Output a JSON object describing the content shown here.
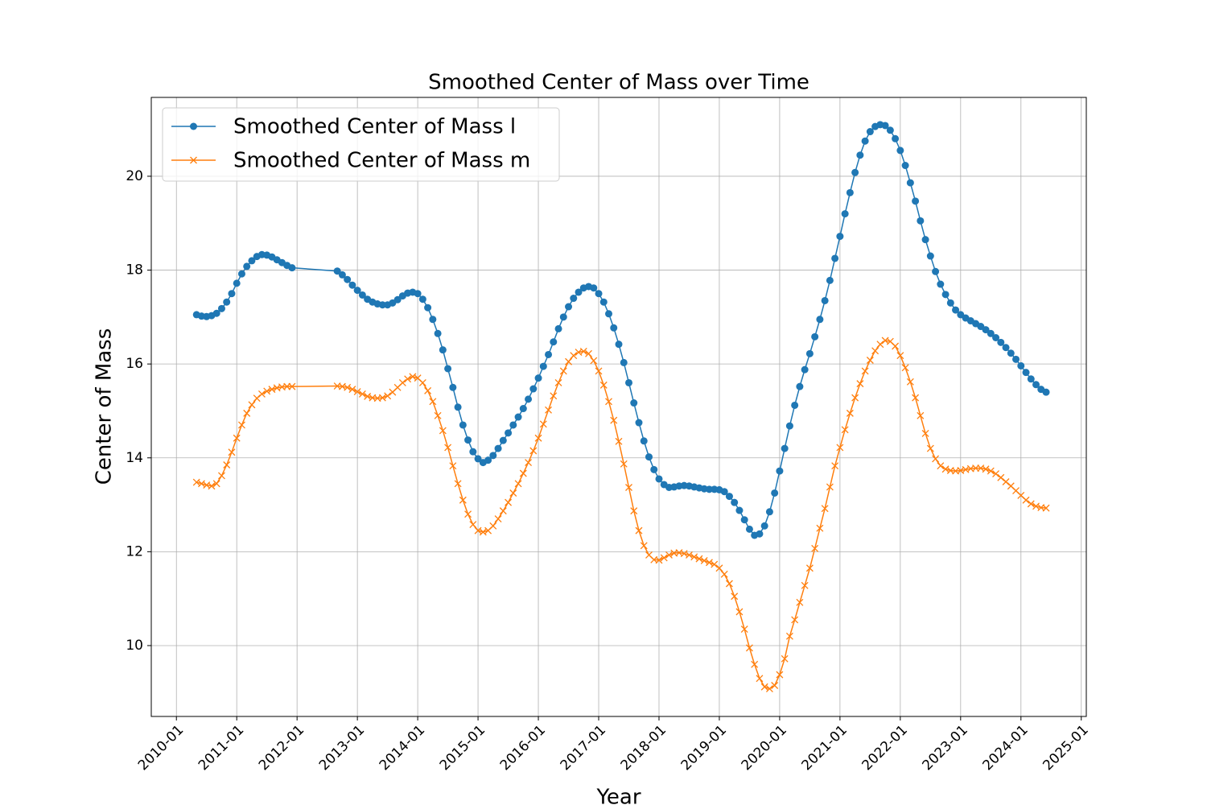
{
  "chart_data": {
    "type": "line",
    "title": "Smoothed Center of Mass over Time",
    "xlabel": "Year",
    "ylabel": "Center of Mass",
    "x": [
      "2010-05",
      "2010-06",
      "2010-07",
      "2010-08",
      "2010-09",
      "2010-10",
      "2010-11",
      "2010-12",
      "2011-01",
      "2011-02",
      "2011-03",
      "2011-04",
      "2011-05",
      "2011-06",
      "2011-07",
      "2011-08",
      "2011-09",
      "2011-10",
      "2011-11",
      "2011-12",
      "2012-09",
      "2012-10",
      "2012-11",
      "2012-12",
      "2013-01",
      "2013-02",
      "2013-03",
      "2013-04",
      "2013-05",
      "2013-06",
      "2013-07",
      "2013-08",
      "2013-09",
      "2013-10",
      "2013-11",
      "2013-12",
      "2014-01",
      "2014-02",
      "2014-03",
      "2014-04",
      "2014-05",
      "2014-06",
      "2014-07",
      "2014-08",
      "2014-09",
      "2014-10",
      "2014-11",
      "2014-12",
      "2015-01",
      "2015-02",
      "2015-03",
      "2015-04",
      "2015-05",
      "2015-06",
      "2015-07",
      "2015-08",
      "2015-09",
      "2015-10",
      "2015-11",
      "2015-12",
      "2016-01",
      "2016-02",
      "2016-03",
      "2016-04",
      "2016-05",
      "2016-06",
      "2016-07",
      "2016-08",
      "2016-09",
      "2016-10",
      "2016-11",
      "2016-12",
      "2017-01",
      "2017-02",
      "2017-03",
      "2017-04",
      "2017-05",
      "2017-06",
      "2017-07",
      "2017-08",
      "2017-09",
      "2017-10",
      "2017-11",
      "2017-12",
      "2018-01",
      "2018-02",
      "2018-03",
      "2018-04",
      "2018-05",
      "2018-06",
      "2018-07",
      "2018-08",
      "2018-09",
      "2018-10",
      "2018-11",
      "2018-12",
      "2019-01",
      "2019-02",
      "2019-03",
      "2019-04",
      "2019-05",
      "2019-06",
      "2019-07",
      "2019-08",
      "2019-09",
      "2019-10",
      "2019-11",
      "2019-12",
      "2020-01",
      "2020-02",
      "2020-03",
      "2020-04",
      "2020-05",
      "2020-06",
      "2020-07",
      "2020-08",
      "2020-09",
      "2020-10",
      "2020-11",
      "2020-12",
      "2021-01",
      "2021-02",
      "2021-03",
      "2021-04",
      "2021-05",
      "2021-06",
      "2021-07",
      "2021-08",
      "2021-09",
      "2021-10",
      "2021-11",
      "2021-12",
      "2022-01",
      "2022-02",
      "2022-03",
      "2022-04",
      "2022-05",
      "2022-06",
      "2022-07",
      "2022-08",
      "2022-09",
      "2022-10",
      "2022-11",
      "2022-12",
      "2023-01",
      "2023-02",
      "2023-03",
      "2023-04",
      "2023-05",
      "2023-06",
      "2023-07",
      "2023-08",
      "2023-09",
      "2023-10",
      "2023-11",
      "2023-12",
      "2024-01",
      "2024-02",
      "2024-03",
      "2024-04",
      "2024-05",
      "2024-06"
    ],
    "series": [
      {
        "name": "Smoothed Center of Mass l",
        "color": "#1f77b4",
        "marker": "o",
        "values": [
          17.05,
          17.02,
          17.01,
          17.03,
          17.08,
          17.18,
          17.32,
          17.5,
          17.72,
          17.92,
          18.08,
          18.2,
          18.29,
          18.33,
          18.32,
          18.28,
          18.22,
          18.16,
          18.1,
          18.05,
          17.98,
          17.9,
          17.8,
          17.68,
          17.57,
          17.47,
          17.38,
          17.32,
          17.28,
          17.26,
          17.26,
          17.3,
          17.37,
          17.45,
          17.51,
          17.53,
          17.5,
          17.38,
          17.2,
          16.95,
          16.65,
          16.3,
          15.9,
          15.5,
          15.08,
          14.7,
          14.38,
          14.13,
          13.98,
          13.9,
          13.95,
          14.05,
          14.2,
          14.37,
          14.53,
          14.7,
          14.87,
          15.05,
          15.25,
          15.47,
          15.7,
          15.95,
          16.2,
          16.47,
          16.75,
          17.0,
          17.22,
          17.4,
          17.53,
          17.62,
          17.65,
          17.62,
          17.5,
          17.32,
          17.07,
          16.77,
          16.42,
          16.03,
          15.6,
          15.17,
          14.75,
          14.36,
          14.02,
          13.75,
          13.55,
          13.43,
          13.37,
          13.38,
          13.4,
          13.41,
          13.4,
          13.38,
          13.36,
          13.34,
          13.33,
          13.33,
          13.32,
          13.28,
          13.18,
          13.05,
          12.88,
          12.68,
          12.48,
          12.35,
          12.38,
          12.55,
          12.85,
          13.25,
          13.72,
          14.2,
          14.68,
          15.12,
          15.52,
          15.88,
          16.22,
          16.58,
          16.95,
          17.35,
          17.78,
          18.25,
          18.72,
          19.2,
          19.65,
          20.08,
          20.45,
          20.75,
          20.95,
          21.06,
          21.1,
          21.08,
          20.98,
          20.8,
          20.55,
          20.23,
          19.86,
          19.47,
          19.05,
          18.65,
          18.3,
          17.97,
          17.7,
          17.48,
          17.3,
          17.15,
          17.05,
          16.98,
          16.92,
          16.86,
          16.8,
          16.73,
          16.65,
          16.56,
          16.46,
          16.35,
          16.23,
          16.1,
          15.96,
          15.82,
          15.68,
          15.56,
          15.46,
          15.4
        ]
      },
      {
        "name": "Smoothed Center of Mass m",
        "color": "#ff7f0e",
        "marker": "x",
        "values": [
          13.48,
          13.45,
          13.42,
          13.4,
          13.45,
          13.62,
          13.85,
          14.12,
          14.42,
          14.7,
          14.95,
          15.13,
          15.27,
          15.36,
          15.42,
          15.46,
          15.49,
          15.51,
          15.52,
          15.52,
          15.53,
          15.52,
          15.5,
          15.46,
          15.41,
          15.36,
          15.31,
          15.28,
          15.27,
          15.28,
          15.32,
          15.4,
          15.5,
          15.6,
          15.68,
          15.73,
          15.7,
          15.6,
          15.43,
          15.2,
          14.9,
          14.58,
          14.22,
          13.83,
          13.45,
          13.1,
          12.8,
          12.58,
          12.45,
          12.42,
          12.45,
          12.55,
          12.7,
          12.87,
          13.05,
          13.25,
          13.45,
          13.67,
          13.9,
          14.15,
          14.42,
          14.72,
          15.02,
          15.32,
          15.6,
          15.85,
          16.05,
          16.18,
          16.25,
          16.27,
          16.22,
          16.07,
          15.85,
          15.55,
          15.2,
          14.8,
          14.35,
          13.87,
          13.37,
          12.87,
          12.45,
          12.13,
          11.93,
          11.83,
          11.82,
          11.87,
          11.93,
          11.97,
          11.98,
          11.96,
          11.93,
          11.89,
          11.85,
          11.81,
          11.77,
          11.73,
          11.65,
          11.52,
          11.32,
          11.05,
          10.72,
          10.35,
          9.95,
          9.6,
          9.3,
          9.12,
          9.08,
          9.15,
          9.38,
          9.72,
          10.2,
          10.55,
          10.92,
          11.28,
          11.65,
          12.07,
          12.5,
          12.92,
          13.38,
          13.83,
          14.22,
          14.6,
          14.95,
          15.28,
          15.58,
          15.85,
          16.08,
          16.28,
          16.42,
          16.5,
          16.48,
          16.38,
          16.18,
          15.92,
          15.62,
          15.28,
          14.9,
          14.52,
          14.2,
          13.98,
          13.83,
          13.76,
          13.73,
          13.72,
          13.73,
          13.75,
          13.77,
          13.78,
          13.78,
          13.76,
          13.72,
          13.66,
          13.58,
          13.49,
          13.4,
          13.3,
          13.2,
          13.1,
          13.02,
          12.97,
          12.94,
          12.93
        ]
      }
    ],
    "xlim": [
      "2009-08",
      "2025-02"
    ],
    "xticks": [
      "2010-01",
      "2011-01",
      "2012-01",
      "2013-01",
      "2014-01",
      "2015-01",
      "2016-01",
      "2017-01",
      "2018-01",
      "2019-01",
      "2020-01",
      "2021-01",
      "2022-01",
      "2023-01",
      "2024-01",
      "2025-01"
    ],
    "ylim": [
      8.49,
      21.68
    ],
    "yticks": [
      10,
      12,
      14,
      16,
      18,
      20
    ],
    "grid": true,
    "legend": "upper left"
  }
}
